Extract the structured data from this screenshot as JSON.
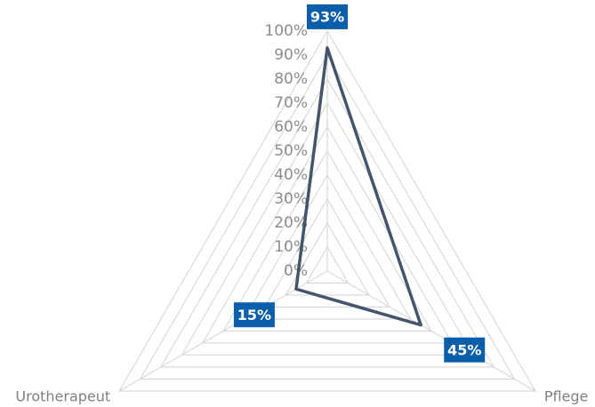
{
  "chart_data": {
    "type": "radar",
    "categories": [
      null,
      "Pflege",
      "Urotherapeut"
    ],
    "series": [
      {
        "color": "#44546a",
        "values": [
          93,
          45,
          15
        ],
        "value_labels": [
          "93%",
          "45%",
          "15%"
        ]
      }
    ],
    "label_color": "#0b5faa",
    "grid_color": "#d9d9d9",
    "rlim": [
      0,
      100
    ],
    "rticks": [
      {
        "value": 0,
        "label": "0%"
      },
      {
        "value": 10,
        "label": "10%"
      },
      {
        "value": 20,
        "label": "20%"
      },
      {
        "value": 30,
        "label": "30%"
      },
      {
        "value": 40,
        "label": "40%"
      },
      {
        "value": 50,
        "label": "50%"
      },
      {
        "value": 60,
        "label": "60%"
      },
      {
        "value": 70,
        "label": "70%"
      },
      {
        "value": 80,
        "label": "80%"
      },
      {
        "value": 90,
        "label": "90%"
      },
      {
        "value": 100,
        "label": "100%"
      }
    ],
    "grid": true
  }
}
